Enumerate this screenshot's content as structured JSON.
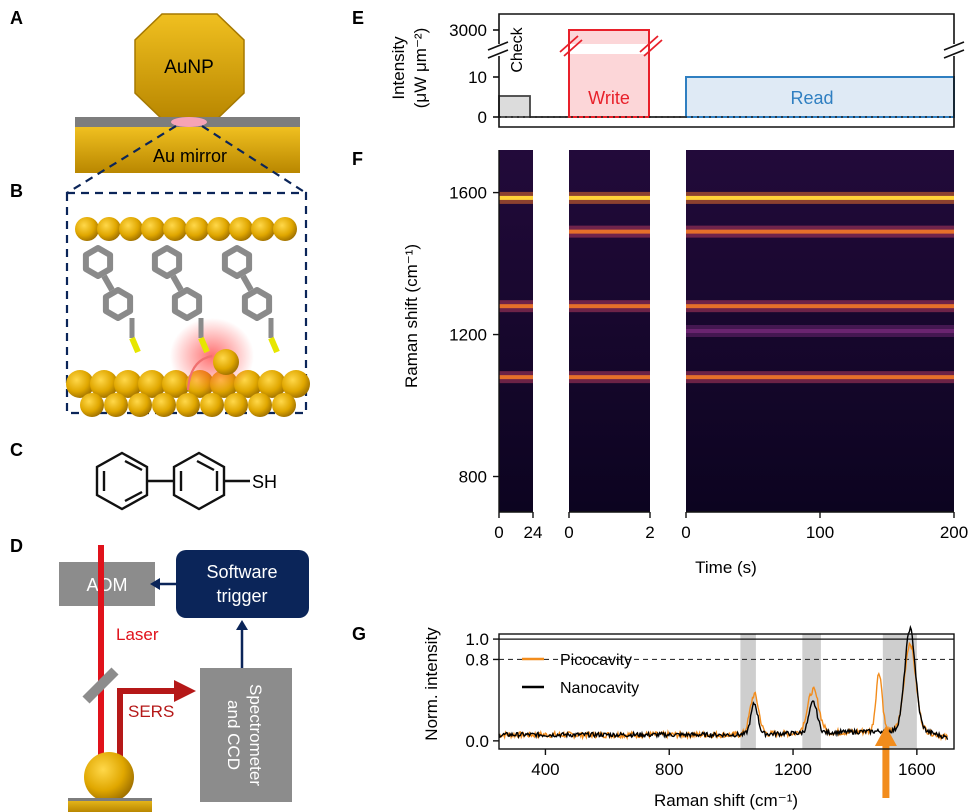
{
  "panels": {
    "A": "A",
    "B": "B",
    "C": "C",
    "D": "D",
    "E": "E",
    "F": "F",
    "G": "G"
  },
  "panel_a": {
    "particle_label": "AuNP",
    "mirror_label": "Au mirror"
  },
  "panel_c": {
    "group_label": "SH"
  },
  "panel_d": {
    "aom_label": "AOM",
    "trigger_line1": "Software",
    "trigger_line2": "trigger",
    "laser_label": "Laser",
    "sers_label": "SERS",
    "spectrometer_line1": "Spectrometer",
    "spectrometer_line2": "and CCD"
  },
  "colors": {
    "gold": "#d9a400",
    "gold_dark": "#a57800",
    "mirror_gray": "#7d7d7d",
    "navy": "#0b2559",
    "box_gray": "#8c8c8c",
    "laser_red": "#e0121b",
    "write_red": "#e8202a",
    "read_blue": "#2f7fc1",
    "check_gray": "#444444",
    "pico_orange": "#f28c1c",
    "nano_black": "#000000",
    "band_gray": "#c9c9c9"
  },
  "chart_data": [
    {
      "type": "line",
      "panel": "E",
      "ylabel_line1": "Intensity",
      "ylabel_line2": "(μW μm⁻²)",
      "ytick_labels": [
        "0",
        "10",
        "3000"
      ],
      "segments": [
        {
          "name": "Check",
          "level": 5,
          "duration_label": "24"
        },
        {
          "name": "Write",
          "level": 3000,
          "duration_label": "2"
        },
        {
          "name": "Read",
          "level": 10,
          "duration_label": "200"
        }
      ]
    },
    {
      "type": "heatmap",
      "panel": "F",
      "ylabel": "Raman shift (cm⁻¹)",
      "xlabel": "Time (s)",
      "ylim": [
        700,
        1720
      ],
      "yticks": [
        800,
        1200,
        1600
      ],
      "segments": [
        {
          "name": "Check",
          "xticks": [
            "0",
            "24"
          ]
        },
        {
          "name": "Write",
          "xticks": [
            "0",
            "2"
          ]
        },
        {
          "name": "Read",
          "xticks": [
            "0",
            "100",
            "200"
          ]
        }
      ],
      "bands": [
        {
          "shift": 1585,
          "segments": [
            0,
            1,
            2
          ],
          "strength": 1.0
        },
        {
          "shift": 1490,
          "segments": [
            1,
            2
          ],
          "strength": 0.55
        },
        {
          "shift": 1280,
          "segments": [
            0,
            1,
            2
          ],
          "strength": 0.55
        },
        {
          "shift": 1210,
          "segments": [
            2
          ],
          "strength": 0.2
        },
        {
          "shift": 1080,
          "segments": [
            0,
            1,
            2
          ],
          "strength": 0.6
        }
      ]
    },
    {
      "type": "line",
      "panel": "G",
      "xlabel": "Raman shift (cm⁻¹)",
      "ylabel": "Norm. intensity",
      "xlim": [
        250,
        1720
      ],
      "ylim": [
        -0.08,
        1.05
      ],
      "xticks": [
        400,
        800,
        1200,
        1600
      ],
      "ytick_labels": [
        "0.0",
        "0.8",
        "1.0"
      ],
      "reference_lines": [
        1.0,
        0.8
      ],
      "highlight_bands": [
        [
          1030,
          1080
        ],
        [
          1230,
          1290
        ],
        [
          1490,
          1600
        ]
      ],
      "arrow_at": 1500,
      "series": [
        {
          "name": "Picocavity",
          "peaks": [
            [
              1075,
              0.39,
              14
            ],
            [
              1265,
              0.42,
              18
            ],
            [
              1478,
              0.58,
              10
            ],
            [
              1578,
              0.86,
              18
            ]
          ]
        },
        {
          "name": "Nanocavity",
          "peaks": [
            [
              1075,
              0.3,
              11
            ],
            [
              1265,
              0.3,
              13
            ],
            [
              1578,
              1.0,
              17
            ]
          ]
        }
      ]
    }
  ]
}
